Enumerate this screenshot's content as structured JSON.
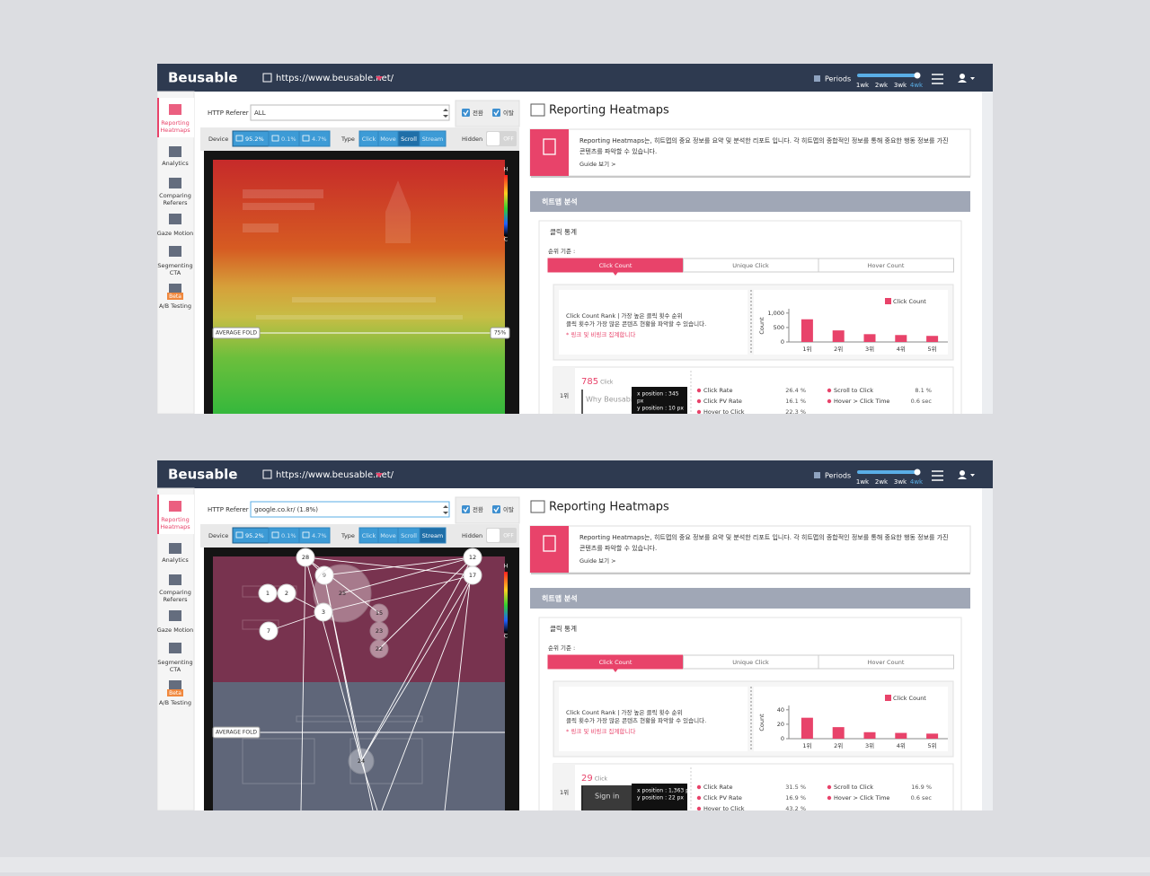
{
  "screens": [
    {
      "logo": "Beusable",
      "url": "https://www.beusable.net/",
      "periods": "Periods",
      "period_options": [
        "1wk",
        "2wk",
        "3wk",
        "4wk"
      ],
      "sidebar": [
        [
          "Reporting",
          "Heatmaps"
        ],
        [
          "Analytics"
        ],
        [
          "Comparing",
          "Referers"
        ],
        [
          "Gaze Motion"
        ],
        [
          "Segmenting",
          "CTA"
        ],
        [
          "A/B Testing"
        ]
      ],
      "beta": "Beta",
      "filters": {
        "referer_label": "HTTP Referer",
        "referer": "ALL",
        "checks": [
          "전환",
          "이탈"
        ],
        "device_label": "Device",
        "devices": [
          "95.2%",
          "0.1%",
          "4.7%"
        ],
        "type_label": "Type",
        "types": [
          "Click",
          "Move",
          "Scroll",
          "Stream"
        ],
        "hidden_label": "Hidden",
        "hidden": "OFF"
      },
      "heatmap": {
        "fold_label": "AVERAGE FOLD",
        "fold_value": "75%",
        "scale": [
          "H",
          "C"
        ]
      },
      "report": {
        "title": "Reporting Heatmaps",
        "info_lines": [
          "Reporting Heatmaps는, 히트맵의 중요 정보를 요약 및 분석한 리포트 입니다. 각 히트맵의 종합적인 정보를 통해 중요한 행동 정보를 가진",
          "콘텐츠를 파악할 수 있습니다."
        ],
        "guide": "Guide 보기 >",
        "section": "히트맵 분석",
        "box_title": "클릭 통계",
        "rank_by": "순위 기준 :",
        "tabs": [
          "Click Count",
          "Unique Click",
          "Hover Count"
        ],
        "card_lines": [
          "Click Count Rank | 가장 높은 클릭 횟수 순위",
          "클릭 횟수가 가장 많은 콘텐츠 현황을 파악할 수 있습니다.",
          "* 링크 및 비링크 집계합니다"
        ],
        "chart": {
          "type": "bar",
          "ylabel": "Count",
          "legend": "Click Count",
          "color": "#e8436a",
          "categories": [
            "1위",
            "2위",
            "3위",
            "4위",
            "5위"
          ],
          "values": [
            785,
            400,
            270,
            240,
            210
          ],
          "ylim": [
            0,
            1150
          ],
          "yticks": [
            0,
            500,
            {
              "value": 1000,
              "label": "1,000"
            }
          ]
        },
        "rank": {
          "label": "1위",
          "count": 785,
          "unit": "Click",
          "element": "Why Beusable?",
          "tooltip": [
            "x position : 345",
            "px",
            "y position : 10 px"
          ],
          "stats": [
            {
              "name": "Click Rate",
              "value": "26.4 %"
            },
            {
              "name": "Click PV Rate",
              "value": "16.1 %"
            },
            {
              "name": "Hover to Click",
              "value": "22.3 %"
            },
            {
              "name": "Scroll to Click",
              "value": "8.1 %"
            },
            {
              "name": "Hover > Click Time",
              "value": "0.6 sec"
            }
          ]
        }
      }
    },
    {
      "logo": "Beusable",
      "url": "https://www.beusable.net/",
      "periods": "Periods",
      "period_options": [
        "1wk",
        "2wk",
        "3wk",
        "4wk"
      ],
      "sidebar": [
        [
          "Reporting",
          "Heatmaps"
        ],
        [
          "Analytics"
        ],
        [
          "Comparing",
          "Referers"
        ],
        [
          "Gaze Motion"
        ],
        [
          "Segmenting",
          "CTA"
        ],
        [
          "A/B Testing"
        ]
      ],
      "beta": "Beta",
      "filters": {
        "referer_label": "HTTP Referer",
        "referer": "google.co.kr/ (1.8%)",
        "checks": [
          "전환",
          "이탈"
        ],
        "device_label": "Device",
        "devices": [
          "95.2%",
          "0.1%",
          "4.7%"
        ],
        "type_label": "Type",
        "types": [
          "Click",
          "Move",
          "Scroll",
          "Stream"
        ],
        "hidden_label": "Hidden",
        "hidden": "OFF"
      },
      "heatmap": {
        "fold_label": "AVERAGE FOLD",
        "scale": [
          "H",
          "C"
        ],
        "nodes": [
          "28",
          "9",
          "1",
          "2",
          "25",
          "3",
          "7",
          "15",
          "23",
          "22",
          "17",
          "12",
          "24"
        ]
      },
      "report": {
        "title": "Reporting Heatmaps",
        "info_lines": [
          "Reporting Heatmaps는, 히트맵의 중요 정보를 요약 및 분석한 리포트 입니다. 각 히트맵의 종합적인 정보를 통해 중요한 행동 정보를 가진",
          "콘텐츠를 파악할 수 있습니다."
        ],
        "guide": "Guide 보기 >",
        "section": "히트맵 분석",
        "box_title": "클릭 통계",
        "rank_by": "순위 기준 :",
        "tabs": [
          "Click Count",
          "Unique Click",
          "Hover Count"
        ],
        "card_lines": [
          "Click Count Rank | 가장 높은 클릭 횟수 순위",
          "클릭 횟수가 가장 많은 콘텐츠 현황을 파악할 수 있습니다.",
          "* 링크 및 비링크 집계합니다"
        ],
        "chart": {
          "type": "bar",
          "ylabel": "Count",
          "legend": "Click Count",
          "color": "#e8436a",
          "categories": [
            "1위",
            "2위",
            "3위",
            "4위",
            "5위"
          ],
          "values": [
            29,
            16,
            9,
            8,
            7
          ],
          "ylim": [
            0,
            46
          ],
          "yticks": [
            0,
            20,
            40
          ]
        },
        "rank": {
          "label": "1위",
          "count": 29,
          "unit": "Click",
          "element": "Sign in",
          "tooltip": [
            "x position : 1,363 px",
            "y position : 22 px"
          ],
          "stats": [
            {
              "name": "Click Rate",
              "value": "31.5 %"
            },
            {
              "name": "Click PV Rate",
              "value": "16.9 %"
            },
            {
              "name": "Hover to Click",
              "value": "43.2 %"
            },
            {
              "name": "Scroll to Click",
              "value": "16.9 %"
            },
            {
              "name": "Hover > Click Time",
              "value": "0.6 sec"
            }
          ]
        }
      }
    }
  ]
}
